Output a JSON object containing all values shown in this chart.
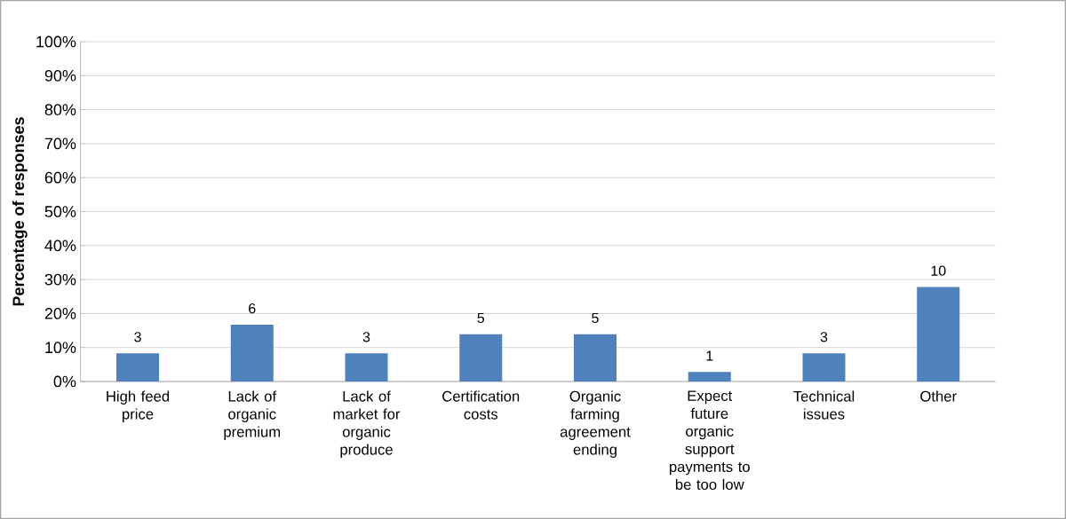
{
  "chart_data": {
    "type": "bar",
    "ylabel": "Percentage of responses",
    "categories": [
      "High feed price",
      "Lack of organic premium",
      "Lack of market for organic produce",
      "Certification costs",
      "Organic farming agreement ending",
      "Expect future organic support payments to be too low",
      "Technical issues",
      "Other"
    ],
    "values": [
      8.3,
      16.7,
      8.3,
      13.9,
      13.9,
      2.8,
      8.3,
      27.8
    ],
    "annotations": [
      {
        "text": "3",
        "x": "High feed price",
        "y": 8.3
      },
      {
        "text": "6",
        "x": "Lack of organic premium",
        "y": 16.7
      },
      {
        "text": "3",
        "x": "Lack of market for organic produce",
        "y": 8.3
      },
      {
        "text": "5",
        "x": "Certification costs",
        "y": 13.9
      },
      {
        "text": "5",
        "x": "Organic farming agreement ending",
        "y": 13.9
      },
      {
        "text": "1",
        "x": "Expect future organic support payments to be too low",
        "y": 2.8
      },
      {
        "text": "3",
        "x": "Technical issues",
        "y": 8.3
      },
      {
        "text": "10",
        "x": "Other",
        "y": 27.8
      }
    ],
    "color": "#4f81bd",
    "ylim": [
      0,
      100
    ],
    "yticks": [
      {
        "value": 0,
        "label": "0%"
      },
      {
        "value": 10,
        "label": "10%"
      },
      {
        "value": 20,
        "label": "20%"
      },
      {
        "value": 30,
        "label": "30%"
      },
      {
        "value": 40,
        "label": "40%"
      },
      {
        "value": 50,
        "label": "50%"
      },
      {
        "value": 60,
        "label": "60%"
      },
      {
        "value": 70,
        "label": "70%"
      },
      {
        "value": 80,
        "label": "80%"
      },
      {
        "value": 90,
        "label": "90%"
      },
      {
        "value": 100,
        "label": "100%"
      }
    ],
    "grid": "y"
  }
}
